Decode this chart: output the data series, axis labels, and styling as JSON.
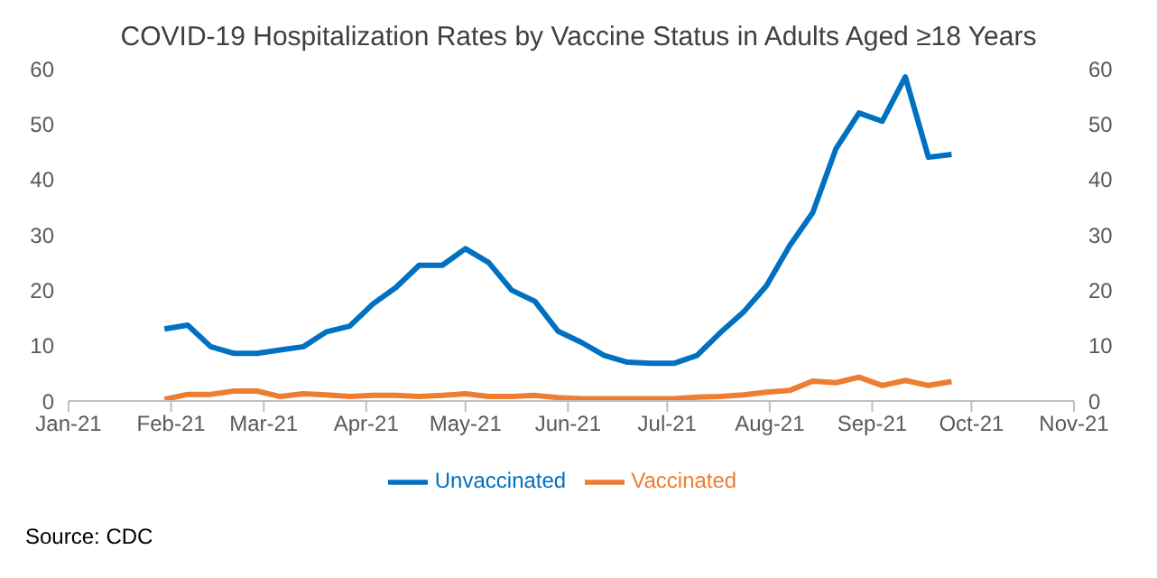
{
  "chart_data": {
    "type": "line",
    "title": "COVID-19 Hospitalization Rates by Vaccine Status in Adults Aged ≥18 Years",
    "x": [
      "2021-01-30",
      "2021-02-06",
      "2021-02-13",
      "2021-02-20",
      "2021-02-27",
      "2021-03-06",
      "2021-03-13",
      "2021-03-20",
      "2021-03-27",
      "2021-04-03",
      "2021-04-10",
      "2021-04-17",
      "2021-04-24",
      "2021-05-01",
      "2021-05-08",
      "2021-05-15",
      "2021-05-22",
      "2021-05-29",
      "2021-06-05",
      "2021-06-12",
      "2021-06-19",
      "2021-06-26",
      "2021-07-03",
      "2021-07-10",
      "2021-07-17",
      "2021-07-24",
      "2021-07-31",
      "2021-08-07",
      "2021-08-14",
      "2021-08-21",
      "2021-08-28",
      "2021-09-04",
      "2021-09-11",
      "2021-09-18",
      "2021-09-25"
    ],
    "series": [
      {
        "name": "Unvaccinated",
        "color": "#0070c0",
        "values": [
          13,
          13.7,
          9.8,
          8.6,
          8.6,
          9.2,
          9.8,
          12.5,
          13.5,
          17.5,
          20.5,
          24.5,
          24.5,
          27.5,
          25,
          20,
          18,
          12.6,
          10.6,
          8.2,
          7,
          6.8,
          6.8,
          8.2,
          12.3,
          16,
          20.8,
          28,
          34,
          45.5,
          52,
          50.5,
          58.5,
          44,
          44.5
        ]
      },
      {
        "name": "Vaccinated",
        "color": "#ed7d31",
        "values": [
          0.3,
          1.2,
          1.2,
          1.8,
          1.8,
          0.8,
          1.3,
          1.1,
          0.8,
          1,
          1,
          0.8,
          1,
          1.3,
          0.8,
          0.8,
          1,
          0.6,
          0.4,
          0.4,
          0.4,
          0.4,
          0.4,
          0.7,
          0.8,
          1.1,
          1.6,
          1.9,
          3.6,
          3.3,
          4.3,
          2.8,
          3.7,
          2.8,
          3.5
        ]
      }
    ],
    "xlim": [
      "2021-01-01",
      "2021-11-01"
    ],
    "xticks": [
      {
        "value": "2021-01-01",
        "label": "Jan-21"
      },
      {
        "value": "2021-02-01",
        "label": "Feb-21"
      },
      {
        "value": "2021-03-01",
        "label": "Mar-21"
      },
      {
        "value": "2021-04-01",
        "label": "Apr-21"
      },
      {
        "value": "2021-05-01",
        "label": "May-21"
      },
      {
        "value": "2021-06-01",
        "label": "Jun-21"
      },
      {
        "value": "2021-07-01",
        "label": "Jul-21"
      },
      {
        "value": "2021-08-01",
        "label": "Aug-21"
      },
      {
        "value": "2021-09-01",
        "label": "Sep-21"
      },
      {
        "value": "2021-10-01",
        "label": "Oct-21"
      },
      {
        "value": "2021-11-01",
        "label": "Nov-21"
      }
    ],
    "ylim": [
      0,
      60
    ],
    "yticks": [
      0,
      10,
      20,
      30,
      40,
      50,
      60
    ],
    "y2lim": [
      0,
      60
    ],
    "y2ticks": [
      0,
      10,
      20,
      30,
      40,
      50,
      60
    ],
    "legend": "bottom",
    "annotations": [
      "Source: CDC"
    ]
  }
}
